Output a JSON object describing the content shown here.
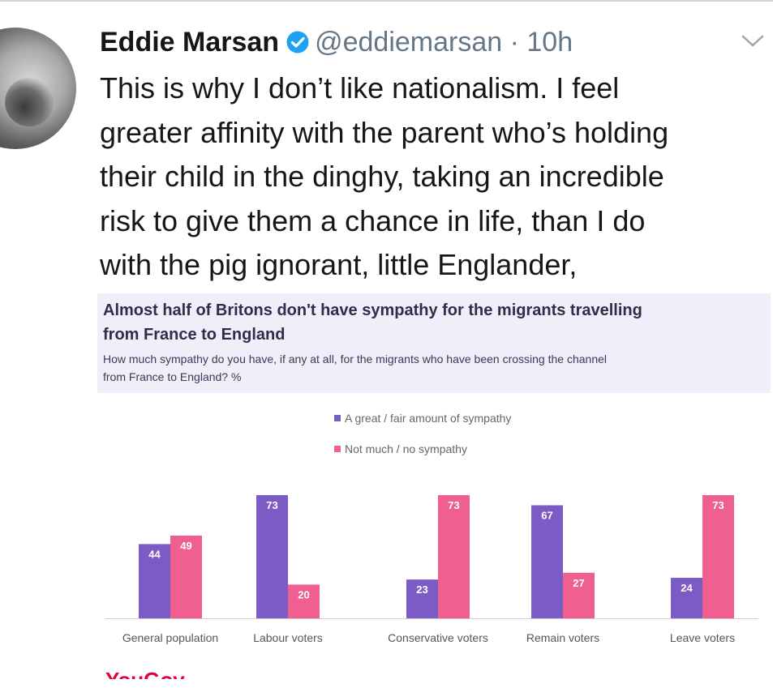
{
  "tweet": {
    "author_name": "Eddie Marsan",
    "handle_time": "@eddiemarsan · 10h",
    "text_lines": [
      "This is why I don’t like nationalism. I feel",
      "greater affinity with the parent who’s holding",
      "their child in the dinghy, taking an incredible",
      "risk to give them a chance in life, than I do",
      "with the pig ignorant, little Englander,"
    ],
    "avatar_icon": "avatar-photo",
    "verified_icon": "verified-badge-icon",
    "menu_icon": "chevron-down-icon",
    "colors": {
      "verified": "#1da1f2",
      "handle": "#657786"
    }
  },
  "chart_data": {
    "type": "bar",
    "title_lines": [
      "Almost half of Britons don't have sympathy for the migrants travelling",
      "from France to England"
    ],
    "subtitle_lines": [
      "How much sympathy do you have, if any at all, for the migrants who have been crossing the channel",
      "from France to England? %"
    ],
    "categories": [
      "General population",
      "Labour voters",
      "Conservative voters",
      "Remain voters",
      "Leave voters"
    ],
    "series": [
      {
        "name": "A great / fair amount of sympathy",
        "values": [
          44,
          73,
          23,
          67,
          24
        ],
        "color": "#7c5cc4"
      },
      {
        "name": "Not much / no sympathy",
        "values": [
          49,
          20,
          73,
          27,
          73
        ],
        "color": "#ef5f8f"
      }
    ],
    "ylim": [
      0,
      80
    ],
    "grid": false,
    "legend_position": "top-center",
    "source_logo": "YouGov"
  }
}
